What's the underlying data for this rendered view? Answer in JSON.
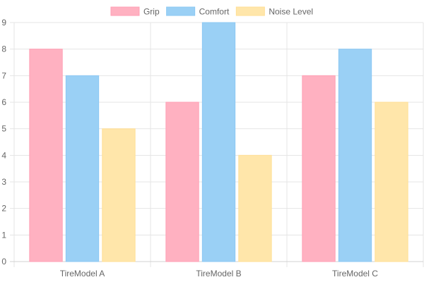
{
  "chart_data": {
    "type": "bar",
    "categories": [
      "TireModel A",
      "TireModel B",
      "TireModel C"
    ],
    "series": [
      {
        "name": "Grip",
        "values": [
          8,
          6,
          7
        ],
        "color": "#ffb1c1",
        "border": "#ff9fb5"
      },
      {
        "name": "Comfort",
        "values": [
          7,
          9,
          8
        ],
        "color": "#9ad0f5",
        "border": "#8cc8f3"
      },
      {
        "name": "Noise Level",
        "values": [
          5,
          4,
          6
        ],
        "color": "#ffe6aa",
        "border": "#ffdf95"
      }
    ],
    "ylim": [
      0,
      9
    ],
    "yticks": [
      "0",
      "1",
      "2",
      "3",
      "4",
      "5",
      "6",
      "7",
      "8",
      "9"
    ],
    "grid": true,
    "legend": "top-center"
  }
}
